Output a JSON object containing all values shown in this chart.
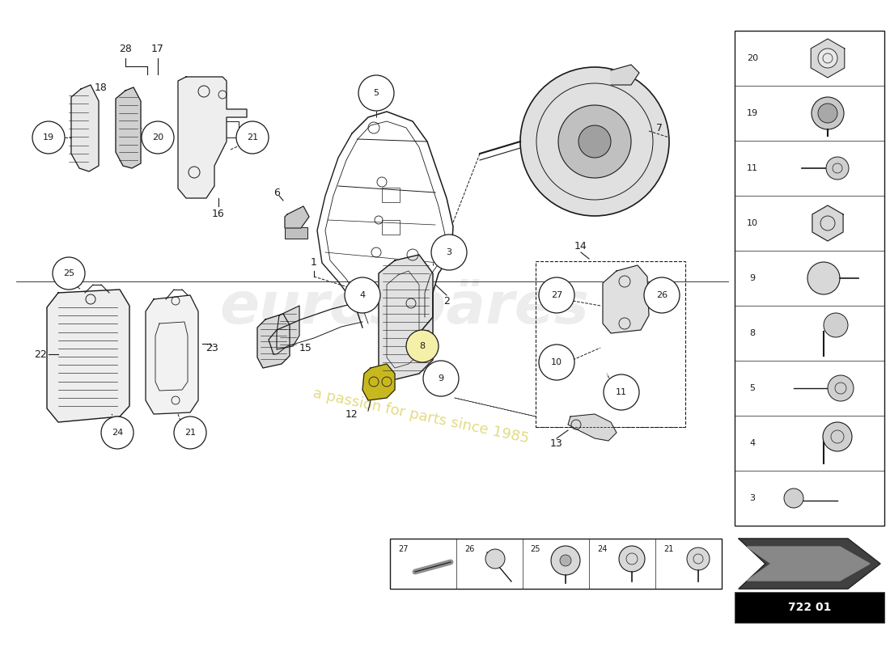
{
  "bg_color": "#ffffff",
  "line_color": "#1a1a1a",
  "watermark_color": "#cccccc",
  "watermark_alpha": 0.4,
  "tagline_color": "#d4c840",
  "part_number": "722 01",
  "right_panel_items": [
    "20",
    "19",
    "11",
    "10",
    "9",
    "8",
    "5",
    "4",
    "3"
  ],
  "bottom_panel_items": [
    "27",
    "26",
    "25",
    "24",
    "21"
  ]
}
